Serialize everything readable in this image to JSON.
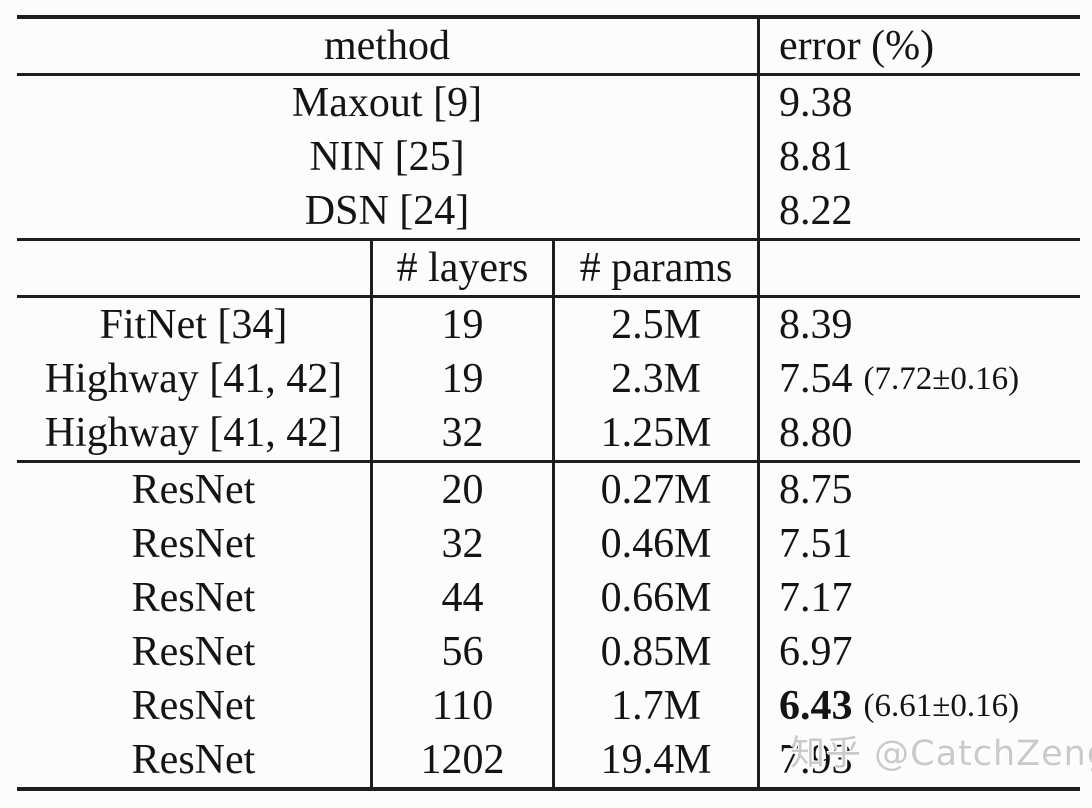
{
  "table": {
    "top_header": {
      "method": "method",
      "error": "error (%)"
    },
    "mid_header": {
      "layers": "# layers",
      "params": "# params"
    },
    "simple_rows": [
      {
        "method": "Maxout [9]",
        "error": "9.38"
      },
      {
        "method": "NIN [25]",
        "error": "8.81"
      },
      {
        "method": "DSN [24]",
        "error": "8.22"
      }
    ],
    "mid_rows": [
      {
        "method": "FitNet [34]",
        "layers": "19",
        "params": "2.5M",
        "error": "8.39",
        "error_note": ""
      },
      {
        "method": "Highway [41, 42]",
        "layers": "19",
        "params": "2.3M",
        "error": "7.54",
        "error_note": "(7.72±0.16)"
      },
      {
        "method": "Highway [41, 42]",
        "layers": "32",
        "params": "1.25M",
        "error": "8.80",
        "error_note": ""
      }
    ],
    "resnet_rows": [
      {
        "method": "ResNet",
        "layers": "20",
        "params": "0.27M",
        "error": "8.75",
        "error_note": ""
      },
      {
        "method": "ResNet",
        "layers": "32",
        "params": "0.46M",
        "error": "7.51",
        "error_note": ""
      },
      {
        "method": "ResNet",
        "layers": "44",
        "params": "0.66M",
        "error": "7.17",
        "error_note": ""
      },
      {
        "method": "ResNet",
        "layers": "56",
        "params": "0.85M",
        "error": "6.97",
        "error_note": ""
      },
      {
        "method": "ResNet",
        "layers": "110",
        "params": "1.7M",
        "error": "6.43",
        "error_note": "(6.61±0.16)"
      },
      {
        "method": "ResNet",
        "layers": "1202",
        "params": "19.4M",
        "error": "7.93",
        "error_note": ""
      }
    ]
  },
  "watermark": {
    "text": "知乎 @CatchZeng",
    "color": "#c9cacb"
  }
}
